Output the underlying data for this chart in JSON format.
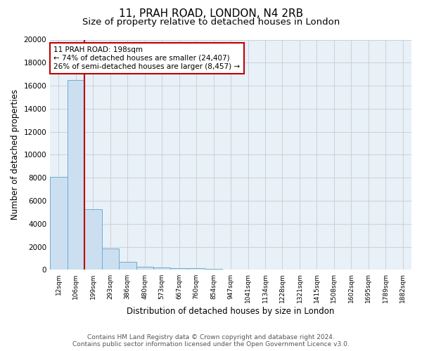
{
  "title1": "11, PRAH ROAD, LONDON, N4 2RB",
  "title2": "Size of property relative to detached houses in London",
  "xlabel": "Distribution of detached houses by size in London",
  "ylabel": "Number of detached properties",
  "bar_values": [
    8100,
    16500,
    5300,
    1850,
    700,
    300,
    200,
    150,
    150,
    100,
    5,
    5,
    5,
    5,
    5,
    5,
    5,
    5,
    5,
    5,
    5
  ],
  "x_labels": [
    "12sqm",
    "106sqm",
    "199sqm",
    "293sqm",
    "386sqm",
    "480sqm",
    "573sqm",
    "667sqm",
    "760sqm",
    "854sqm",
    "947sqm",
    "1041sqm",
    "1134sqm",
    "1228sqm",
    "1321sqm",
    "1415sqm",
    "1508sqm",
    "1602sqm",
    "1695sqm",
    "1789sqm",
    "1882sqm"
  ],
  "bar_color": "#ccdff0",
  "bar_edge_color": "#6baed6",
  "red_line_x": 1.5,
  "annotation_line1": "11 PRAH ROAD: 198sqm",
  "annotation_line2": "← 74% of detached houses are smaller (24,407)",
  "annotation_line3": "26% of semi-detached houses are larger (8,457) →",
  "annotation_box_edge": "#c00000",
  "ylim": [
    0,
    20000
  ],
  "yticks": [
    0,
    2000,
    4000,
    6000,
    8000,
    10000,
    12000,
    14000,
    16000,
    18000,
    20000
  ],
  "grid_color": "#cccccc",
  "bg_color": "#e8f0f8",
  "footer_line1": "Contains HM Land Registry data © Crown copyright and database right 2024.",
  "footer_line2": "Contains public sector information licensed under the Open Government Licence v3.0.",
  "title1_fontsize": 11,
  "title2_fontsize": 9.5,
  "xlabel_fontsize": 8.5,
  "ylabel_fontsize": 8.5,
  "annotation_fontsize": 7.5,
  "footer_fontsize": 6.5
}
